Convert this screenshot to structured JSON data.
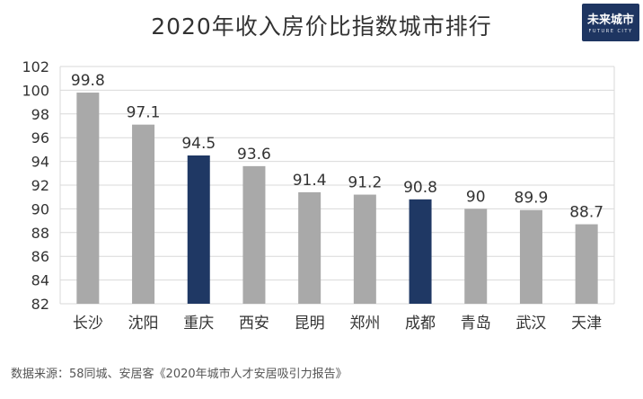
{
  "chart_data": {
    "type": "bar",
    "title": "2020年收入房价比指数城市排行",
    "categories": [
      "长沙",
      "沈阳",
      "重庆",
      "西安",
      "昆明",
      "郑州",
      "成都",
      "青岛",
      "武汉",
      "天津"
    ],
    "values": [
      99.8,
      97.1,
      94.5,
      93.6,
      91.4,
      91.2,
      90.8,
      90,
      89.9,
      88.7
    ],
    "value_labels": [
      "99.8",
      "97.1",
      "94.5",
      "93.6",
      "91.4",
      "91.2",
      "90.8",
      "90",
      "89.9",
      "88.7"
    ],
    "highlighted": [
      "重庆",
      "成都"
    ],
    "ylim": [
      82,
      102
    ],
    "yticks": [
      82,
      84,
      86,
      88,
      90,
      92,
      94,
      96,
      98,
      100,
      102
    ],
    "grid": true,
    "xlabel": "",
    "ylabel": ""
  },
  "colors": {
    "bar_default": "#a9a9a9",
    "bar_highlight": "#1f3864",
    "grid": "#d9d9d9",
    "text": "#333333",
    "logo_bg": "#1e3561"
  },
  "logo": {
    "main": "未来城市",
    "sub": "FUTURE CITY"
  },
  "source": "数据来源：58同城、安居客《2020年城市人才安居吸引力报告》"
}
